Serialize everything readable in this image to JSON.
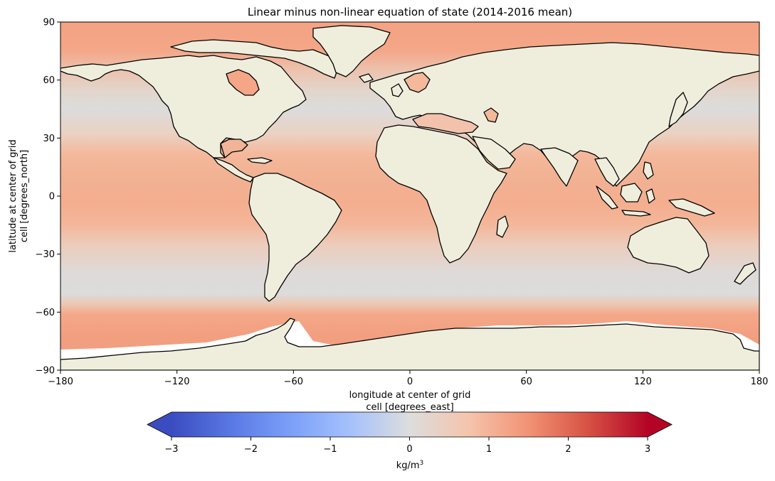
{
  "title": "Linear minus non-linear equation of state (2014-2016 mean)",
  "x_axis": {
    "label_line1": "longitude at center of grid",
    "label_line2": "cell [degrees_east]",
    "ticks": [
      "−180",
      "−120",
      "−60",
      "0",
      "60",
      "120",
      "180"
    ],
    "range": [
      -180,
      180
    ]
  },
  "y_axis": {
    "label_line1": "latitude at center of grid",
    "label_line2": "cell [degrees_north]",
    "ticks": [
      "90",
      "60",
      "30",
      "0",
      "−30",
      "−60",
      "−90"
    ],
    "range": [
      -90,
      90
    ]
  },
  "colorbar": {
    "label": "kg/m",
    "label_sup": "3",
    "ticks": [
      "−3",
      "−2",
      "−1",
      "0",
      "1",
      "2",
      "3"
    ],
    "range": [
      -3,
      3
    ],
    "colormap": "coolwarm",
    "extend": "both"
  },
  "map": {
    "projection": "PlateCarree",
    "land_color": "#efeedd",
    "coastline_color": "#000000",
    "typical_values": {
      "tropics": 1.1,
      "subtropical_bands": 0.4,
      "mid_latitudes": 0.2,
      "southern_ocean_high": 1.2,
      "arctic": 1.3
    }
  },
  "colors": {
    "cmap_min": "#3b4cc0",
    "cmap_mid": "#dddddd",
    "cmap_max": "#b40426"
  }
}
